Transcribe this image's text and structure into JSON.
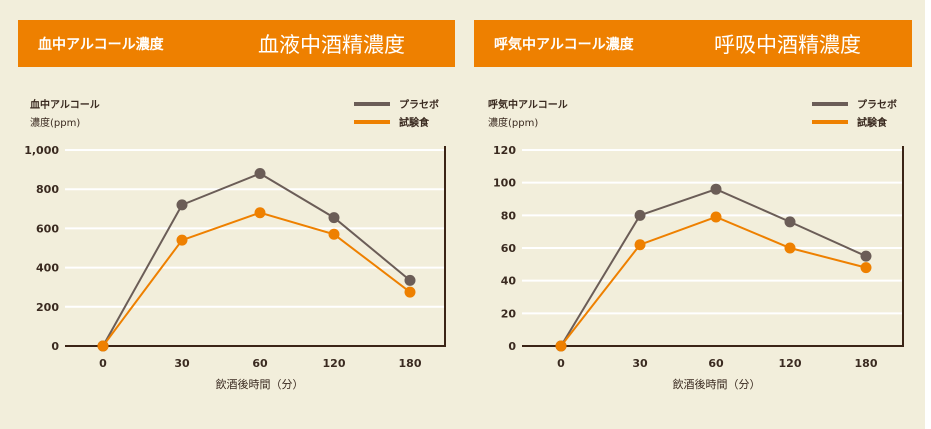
{
  "colors": {
    "placebo": "#6b5d57",
    "test": "#ee8000",
    "header": "#ee8000",
    "background": "#f2eedb"
  },
  "chart_data": [
    {
      "type": "line",
      "header_small": "血中アルコール濃度",
      "header_large": "血液中酒精濃度",
      "ylabel_line1": "血中アルコール",
      "ylabel_line2": "濃度(ppm)",
      "xlabel": "飲酒後時間（分）",
      "categories": [
        "0",
        "30",
        "60",
        "120",
        "180"
      ],
      "yticks": [
        "0",
        "200",
        "400",
        "600",
        "800",
        "1,000"
      ],
      "ylim": [
        0,
        1000
      ],
      "series": [
        {
          "name": "プラセボ",
          "values": [
            0,
            720,
            880,
            655,
            335
          ]
        },
        {
          "name": "試験食",
          "values": [
            0,
            540,
            680,
            570,
            275
          ]
        }
      ],
      "legend": "top-right",
      "grid": true
    },
    {
      "type": "line",
      "header_small": "呼気中アルコール濃度",
      "header_large": "呼吸中酒精濃度",
      "ylabel_line1": "呼気中アルコール",
      "ylabel_line2": "濃度(ppm)",
      "xlabel": "飲酒後時間（分）",
      "categories": [
        "0",
        "30",
        "60",
        "120",
        "180"
      ],
      "yticks": [
        "0",
        "20",
        "40",
        "60",
        "80",
        "100",
        "120"
      ],
      "ylim": [
        0,
        120
      ],
      "series": [
        {
          "name": "プラセボ",
          "values": [
            0,
            80,
            96,
            76,
            55
          ]
        },
        {
          "name": "試験食",
          "values": [
            0,
            62,
            79,
            60,
            48
          ]
        }
      ],
      "legend": "top-right",
      "grid": true
    }
  ]
}
